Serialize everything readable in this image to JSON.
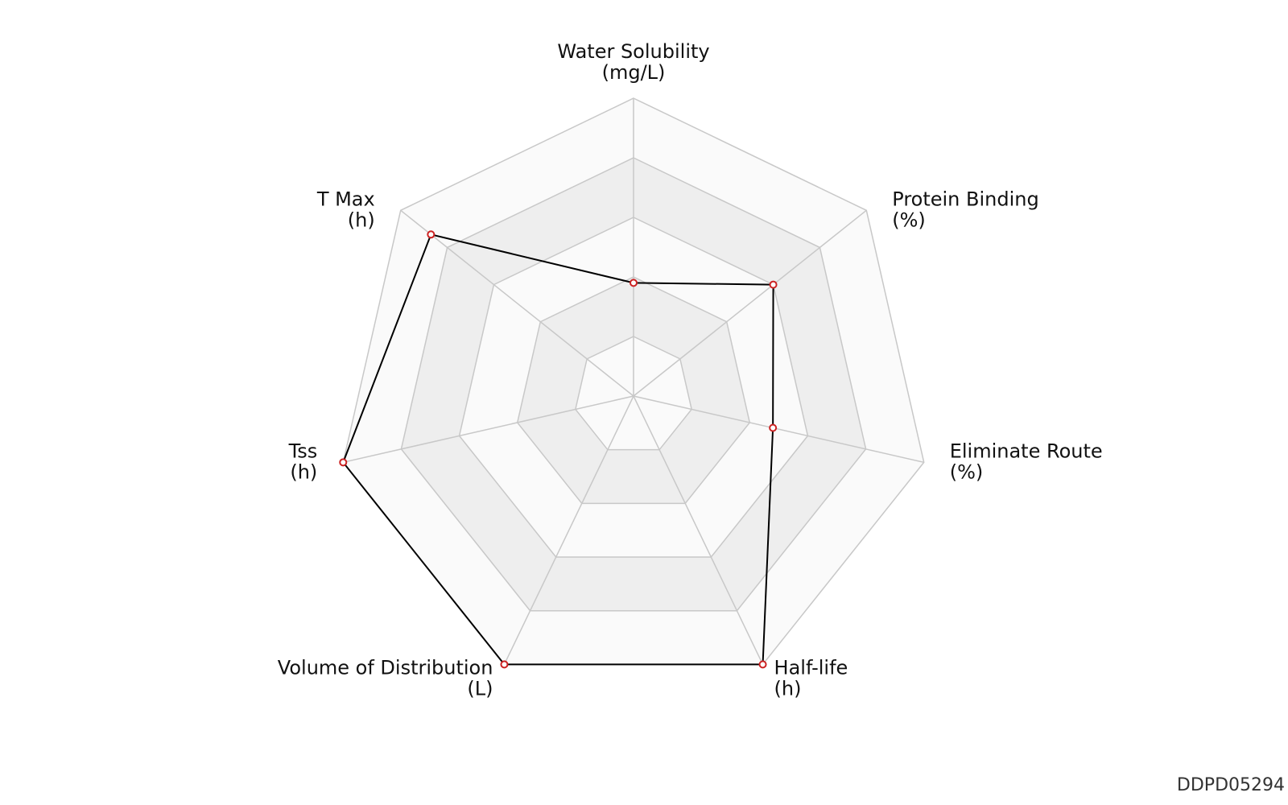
{
  "chart_data": {
    "type": "radar",
    "axes": [
      {
        "name": "Water Solubility",
        "unit": "(mg/L)",
        "value": 0.38
      },
      {
        "name": "Protein Binding",
        "unit": "(%)",
        "value": 0.6
      },
      {
        "name": "Eliminate Route",
        "unit": "(%)",
        "value": 0.48
      },
      {
        "name": "Half-life",
        "unit": "(h)",
        "value": 1.0
      },
      {
        "name": "Volume of Distribution",
        "unit": "(L)",
        "value": 1.0
      },
      {
        "name": "Tss",
        "unit": "(h)",
        "value": 1.0
      },
      {
        "name": "T Max",
        "unit": "(h)",
        "value": 0.87
      }
    ],
    "rings": 5,
    "scale": [
      0,
      1
    ],
    "colors": {
      "band_fill": "#eeeeee",
      "inner_fill": "#fafafa",
      "grid_line": "#c8c8c8",
      "series_line": "#000000",
      "marker_stroke": "#cc2222",
      "marker_fill": "#ffffff"
    }
  },
  "compound_id": "DDPD05294"
}
